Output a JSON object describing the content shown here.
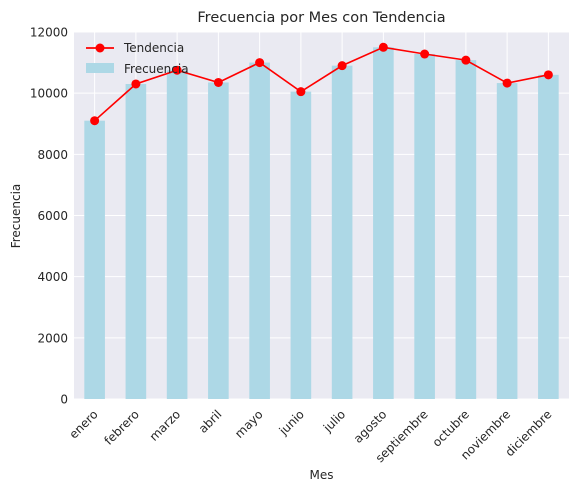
{
  "chart_data": {
    "type": "bar",
    "title": "Frecuencia por Mes con Tendencia",
    "xlabel": "Mes",
    "ylabel": "Frecuencia",
    "categories": [
      "enero",
      "febrero",
      "marzo",
      "abril",
      "mayo",
      "junio",
      "julio",
      "agosto",
      "septiembre",
      "octubre",
      "noviembre",
      "diciembre"
    ],
    "series": [
      {
        "name": "Frecuencia",
        "type": "bar",
        "color": "#add8e6",
        "values": [
          9100,
          10300,
          10750,
          10350,
          11000,
          10050,
          10900,
          11500,
          11280,
          11080,
          10330,
          10600
        ]
      },
      {
        "name": "Tendencia",
        "type": "line",
        "color": "#ff0000",
        "marker": "circle",
        "values": [
          9100,
          10300,
          10750,
          10350,
          11000,
          10050,
          10900,
          11500,
          11280,
          11080,
          10330,
          10600
        ]
      }
    ],
    "ylim": [
      0,
      12000
    ],
    "yticks": [
      0,
      2000,
      4000,
      6000,
      8000,
      10000,
      12000
    ],
    "grid": true,
    "legend_position": "top-left",
    "background": "#eaeaf2"
  }
}
